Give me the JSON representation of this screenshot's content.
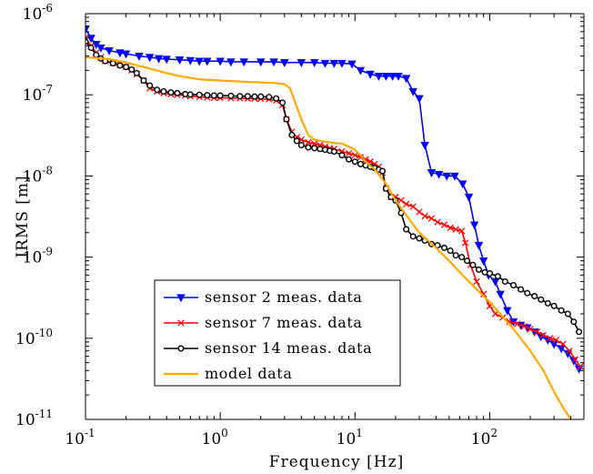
{
  "chart_data": {
    "type": "line",
    "title": "",
    "xlabel": "Frequency [Hz]",
    "ylabel": "IRMS [m]",
    "xscale": "log",
    "yscale": "log",
    "xlim": [
      0.1,
      500
    ],
    "ylim": [
      1e-11,
      1e-06
    ],
    "grid": false,
    "legend_position": "bottom-left",
    "x_ticks": [
      {
        "base": "10",
        "exp": "-1",
        "value": 0.1
      },
      {
        "base": "10",
        "exp": "0",
        "value": 1
      },
      {
        "base": "10",
        "exp": "1",
        "value": 10
      },
      {
        "base": "10",
        "exp": "2",
        "value": 100
      }
    ],
    "y_ticks": [
      {
        "base": "10",
        "exp": "-6",
        "value": 1e-06
      },
      {
        "base": "10",
        "exp": "-7",
        "value": 1e-07
      },
      {
        "base": "10",
        "exp": "-8",
        "value": 1e-08
      },
      {
        "base": "10",
        "exp": "-9",
        "value": 1e-09
      },
      {
        "base": "10",
        "exp": "-10",
        "value": 1e-10
      },
      {
        "base": "10",
        "exp": "-11",
        "value": 1e-11
      }
    ],
    "series": [
      {
        "name": "sensor 2 meas. data",
        "color": "#0000ff",
        "marker": "triangle-down",
        "points": [
          [
            0.1,
            6.5e-07
          ],
          [
            0.11,
            5e-07
          ],
          [
            0.12,
            4.2e-07
          ],
          [
            0.13,
            3.8e-07
          ],
          [
            0.15,
            3.5e-07
          ],
          [
            0.18,
            3.3e-07
          ],
          [
            0.2,
            3.2e-07
          ],
          [
            0.25,
            3e-07
          ],
          [
            0.3,
            2.9e-07
          ],
          [
            0.35,
            2.8e-07
          ],
          [
            0.4,
            2.75e-07
          ],
          [
            0.5,
            2.7e-07
          ],
          [
            0.6,
            2.65e-07
          ],
          [
            0.7,
            2.6e-07
          ],
          [
            0.8,
            2.6e-07
          ],
          [
            1,
            2.6e-07
          ],
          [
            1.2,
            2.55e-07
          ],
          [
            1.5,
            2.55e-07
          ],
          [
            2,
            2.55e-07
          ],
          [
            2.5,
            2.55e-07
          ],
          [
            3,
            2.5e-07
          ],
          [
            4,
            2.5e-07
          ],
          [
            5,
            2.5e-07
          ],
          [
            6,
            2.45e-07
          ],
          [
            7,
            2.45e-07
          ],
          [
            8,
            2.45e-07
          ],
          [
            9.5,
            2.4e-07
          ],
          [
            11,
            2e-07
          ],
          [
            13,
            1.8e-07
          ],
          [
            15,
            1.7e-07
          ],
          [
            17,
            1.7e-07
          ],
          [
            19,
            1.7e-07
          ],
          [
            21,
            1.7e-07
          ],
          [
            24,
            1.6e-07
          ],
          [
            27,
            1.1e-07
          ],
          [
            30,
            9e-08
          ],
          [
            33,
            2.4e-08
          ],
          [
            37,
            1.1e-08
          ],
          [
            42,
            1.05e-08
          ],
          [
            48,
            1e-08
          ],
          [
            55,
            1e-08
          ],
          [
            63,
            8e-09
          ],
          [
            70,
            5.5e-09
          ],
          [
            77,
            2.5e-09
          ],
          [
            83,
            1.4e-09
          ],
          [
            90,
            9e-10
          ],
          [
            98,
            6e-10
          ],
          [
            110,
            5e-10
          ],
          [
            120,
            3.5e-10
          ],
          [
            135,
            2.2e-10
          ],
          [
            150,
            1.6e-10
          ],
          [
            170,
            1.45e-10
          ],
          [
            190,
            1.35e-10
          ],
          [
            215,
            1.2e-10
          ],
          [
            240,
            1.05e-10
          ],
          [
            270,
            9.5e-11
          ],
          [
            300,
            8.5e-11
          ],
          [
            340,
            7.5e-11
          ],
          [
            380,
            6.5e-11
          ],
          [
            420,
            5.3e-11
          ],
          [
            460,
            4.2e-11
          ]
        ]
      },
      {
        "name": "sensor 7 meas. data",
        "color": "#ff0000",
        "marker": "x",
        "points": [
          [
            0.1,
            5e-07
          ],
          [
            0.11,
            4e-07
          ],
          [
            0.12,
            3.3e-07
          ],
          [
            0.13,
            2.9e-07
          ],
          [
            0.14,
            2.6e-07
          ],
          [
            0.16,
            2.45e-07
          ],
          [
            0.18,
            2.35e-07
          ],
          [
            0.2,
            2.2e-07
          ],
          [
            0.22,
            2e-07
          ],
          [
            0.24,
            1.8e-07
          ],
          [
            0.27,
            1.5e-07
          ],
          [
            0.3,
            1.2e-07
          ],
          [
            0.34,
            1.1e-07
          ],
          [
            0.38,
            1.05e-07
          ],
          [
            0.43,
            1.02e-07
          ],
          [
            0.48,
            1e-07
          ],
          [
            0.55,
            9.8e-08
          ],
          [
            0.6,
            9.6e-08
          ],
          [
            0.7,
            9.4e-08
          ],
          [
            0.8,
            9.3e-08
          ],
          [
            0.9,
            9.2e-08
          ],
          [
            1,
            9.2e-08
          ],
          [
            1.2,
            9.1e-08
          ],
          [
            1.4,
            9.1e-08
          ],
          [
            1.6,
            9e-08
          ],
          [
            1.8,
            9e-08
          ],
          [
            2,
            8.9e-08
          ],
          [
            2.3,
            8.8e-08
          ],
          [
            2.6,
            8.5e-08
          ],
          [
            2.9,
            7.5e-08
          ],
          [
            3.1,
            5e-08
          ],
          [
            3.4,
            3.5e-08
          ],
          [
            3.7,
            3e-08
          ],
          [
            4,
            2.8e-08
          ],
          [
            4.5,
            2.6e-08
          ],
          [
            5,
            2.5e-08
          ],
          [
            5.5,
            2.4e-08
          ],
          [
            6,
            2.3e-08
          ],
          [
            6.5,
            2.2e-08
          ],
          [
            7,
            2.15e-08
          ],
          [
            8,
            2e-08
          ],
          [
            9,
            1.9e-08
          ],
          [
            10,
            1.8e-08
          ],
          [
            11,
            1.7e-08
          ],
          [
            12,
            1.6e-08
          ],
          [
            13,
            1.5e-08
          ],
          [
            14,
            1.4e-08
          ],
          [
            15,
            1.3e-08
          ],
          [
            16,
            1.1e-08
          ],
          [
            17,
            7e-09
          ],
          [
            18.5,
            5.5e-09
          ],
          [
            20,
            5.5e-09
          ],
          [
            22,
            5e-09
          ],
          [
            24,
            4.5e-09
          ],
          [
            27,
            4.2e-09
          ],
          [
            30,
            3.6e-09
          ],
          [
            33,
            3.2e-09
          ],
          [
            37,
            3e-09
          ],
          [
            41,
            2.7e-09
          ],
          [
            46,
            2.5e-09
          ],
          [
            51,
            2.3e-09
          ],
          [
            56,
            2.2e-09
          ],
          [
            62,
            2.1e-09
          ],
          [
            66,
            1.5e-09
          ],
          [
            72,
            8e-10
          ],
          [
            80,
            5e-10
          ],
          [
            90,
            3.5e-10
          ],
          [
            100,
            2.5e-10
          ],
          [
            110,
            2e-10
          ],
          [
            125,
            1.8e-10
          ],
          [
            140,
            1.6e-10
          ],
          [
            160,
            1.5e-10
          ],
          [
            180,
            1.4e-10
          ],
          [
            200,
            1.3e-10
          ],
          [
            225,
            1.2e-10
          ],
          [
            250,
            1.1e-10
          ],
          [
            280,
            1e-10
          ],
          [
            310,
            9.5e-11
          ],
          [
            350,
            8.5e-11
          ],
          [
            390,
            7e-11
          ],
          [
            430,
            5.5e-11
          ],
          [
            470,
            4.5e-11
          ]
        ]
      },
      {
        "name": "sensor 14 meas. data",
        "color": "#000000",
        "marker": "circle",
        "points": [
          [
            0.1,
            4.5e-07
          ],
          [
            0.11,
            3.8e-07
          ],
          [
            0.12,
            3.1e-07
          ],
          [
            0.13,
            2.8e-07
          ],
          [
            0.14,
            2.6e-07
          ],
          [
            0.16,
            2.45e-07
          ],
          [
            0.18,
            2.3e-07
          ],
          [
            0.2,
            2.2e-07
          ],
          [
            0.22,
            2.05e-07
          ],
          [
            0.24,
            1.85e-07
          ],
          [
            0.27,
            1.5e-07
          ],
          [
            0.3,
            1.3e-07
          ],
          [
            0.34,
            1.15e-07
          ],
          [
            0.38,
            1.1e-07
          ],
          [
            0.43,
            1.07e-07
          ],
          [
            0.48,
            1.05e-07
          ],
          [
            0.55,
            1.02e-07
          ],
          [
            0.6,
            1.01e-07
          ],
          [
            0.7,
            1e-07
          ],
          [
            0.8,
            9.9e-08
          ],
          [
            0.9,
            9.8e-08
          ],
          [
            1,
            9.8e-08
          ],
          [
            1.2,
            9.7e-08
          ],
          [
            1.4,
            9.6e-08
          ],
          [
            1.6,
            9.6e-08
          ],
          [
            1.8,
            9.5e-08
          ],
          [
            2,
            9.5e-08
          ],
          [
            2.3,
            9.4e-08
          ],
          [
            2.6,
            9e-08
          ],
          [
            2.9,
            8e-08
          ],
          [
            3.1,
            5e-08
          ],
          [
            3.4,
            3.2e-08
          ],
          [
            3.7,
            2.7e-08
          ],
          [
            4,
            2.4e-08
          ],
          [
            4.5,
            2.25e-08
          ],
          [
            5,
            2.2e-08
          ],
          [
            5.5,
            2.15e-08
          ],
          [
            6,
            2.1e-08
          ],
          [
            6.5,
            2.05e-08
          ],
          [
            7,
            2e-08
          ],
          [
            8,
            1.8e-08
          ],
          [
            9,
            1.6e-08
          ],
          [
            10,
            1.5e-08
          ],
          [
            11,
            1.4e-08
          ],
          [
            12,
            1.35e-08
          ],
          [
            13,
            1.3e-08
          ],
          [
            14,
            1.25e-08
          ],
          [
            15,
            1.2e-08
          ],
          [
            16,
            1.15e-08
          ],
          [
            17,
            7e-09
          ],
          [
            18.5,
            5.5e-09
          ],
          [
            20,
            5e-09
          ],
          [
            22,
            3.5e-09
          ],
          [
            24,
            2.2e-09
          ],
          [
            27,
            1.8e-09
          ],
          [
            30,
            1.7e-09
          ],
          [
            33,
            1.6e-09
          ],
          [
            37,
            1.45e-09
          ],
          [
            41,
            1.4e-09
          ],
          [
            46,
            1.3e-09
          ],
          [
            51,
            1.2e-09
          ],
          [
            56,
            1.05e-09
          ],
          [
            62,
            1e-09
          ],
          [
            68,
            9e-10
          ],
          [
            75,
            8e-10
          ],
          [
            83,
            7e-10
          ],
          [
            92,
            6.5e-10
          ],
          [
            100,
            6.3e-10
          ],
          [
            115,
            5.8e-10
          ],
          [
            130,
            5e-10
          ],
          [
            150,
            4.5e-10
          ],
          [
            170,
            4e-10
          ],
          [
            190,
            3.6e-10
          ],
          [
            215,
            3.3e-10
          ],
          [
            240,
            3e-10
          ],
          [
            270,
            2.7e-10
          ],
          [
            300,
            2.5e-10
          ],
          [
            340,
            2.2e-10
          ],
          [
            380,
            2e-10
          ],
          [
            420,
            1.6e-10
          ],
          [
            460,
            1.2e-10
          ]
        ]
      },
      {
        "name": "model data",
        "color": "#ffaa00",
        "marker": "none",
        "points": [
          [
            0.1,
            2.9e-07
          ],
          [
            0.15,
            2.75e-07
          ],
          [
            0.2,
            2.5e-07
          ],
          [
            0.3,
            2.1e-07
          ],
          [
            0.4,
            1.85e-07
          ],
          [
            0.5,
            1.7e-07
          ],
          [
            0.7,
            1.55e-07
          ],
          [
            1,
            1.5e-07
          ],
          [
            1.5,
            1.45e-07
          ],
          [
            2,
            1.42e-07
          ],
          [
            2.5,
            1.4e-07
          ],
          [
            3,
            1.35e-07
          ],
          [
            3.3,
            1.2e-07
          ],
          [
            3.6,
            8e-08
          ],
          [
            4,
            5e-08
          ],
          [
            4.5,
            3.2e-08
          ],
          [
            5,
            2.8e-08
          ],
          [
            6,
            2.65e-08
          ],
          [
            7,
            2.55e-08
          ],
          [
            8,
            2.5e-08
          ],
          [
            9,
            2.3e-08
          ],
          [
            10,
            2.1e-08
          ],
          [
            11,
            1.8e-08
          ],
          [
            12,
            1.5e-08
          ],
          [
            14,
            1.2e-08
          ],
          [
            17,
            8e-09
          ],
          [
            20,
            5e-09
          ],
          [
            25,
            3e-09
          ],
          [
            30,
            2e-09
          ],
          [
            40,
            1.3e-09
          ],
          [
            50,
            9e-10
          ],
          [
            60,
            6.5e-10
          ],
          [
            80,
            4e-10
          ],
          [
            100,
            2.8e-10
          ],
          [
            150,
            1.3e-10
          ],
          [
            200,
            7e-11
          ],
          [
            250,
            4e-11
          ],
          [
            300,
            2.2e-11
          ],
          [
            350,
            1.4e-11
          ],
          [
            400,
            1e-11
          ]
        ]
      }
    ]
  }
}
